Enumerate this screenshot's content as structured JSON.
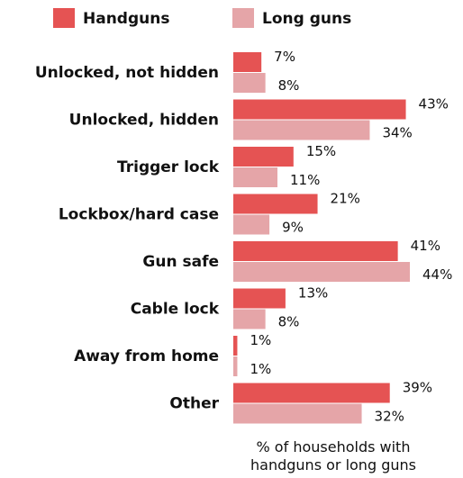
{
  "chart_data": {
    "type": "bar",
    "orientation": "horizontal",
    "categories": [
      "Unlocked, not hidden",
      "Unlocked, hidden",
      "Trigger lock",
      "Lockbox/hard case",
      "Gun safe",
      "Cable lock",
      "Away from home",
      "Other"
    ],
    "series": [
      {
        "name": "Handguns",
        "color": "#e55353",
        "values": [
          7,
          43,
          15,
          21,
          41,
          13,
          1,
          39
        ]
      },
      {
        "name": "Long guns",
        "color": "#e5a5a8",
        "values": [
          8,
          34,
          11,
          9,
          44,
          8,
          1,
          32
        ]
      }
    ],
    "value_suffix": "%",
    "xlabel_lines": [
      "% of households with",
      "handguns or long guns"
    ],
    "xlim": [
      0,
      44
    ],
    "legend_position": "top-left",
    "grid": false
  }
}
